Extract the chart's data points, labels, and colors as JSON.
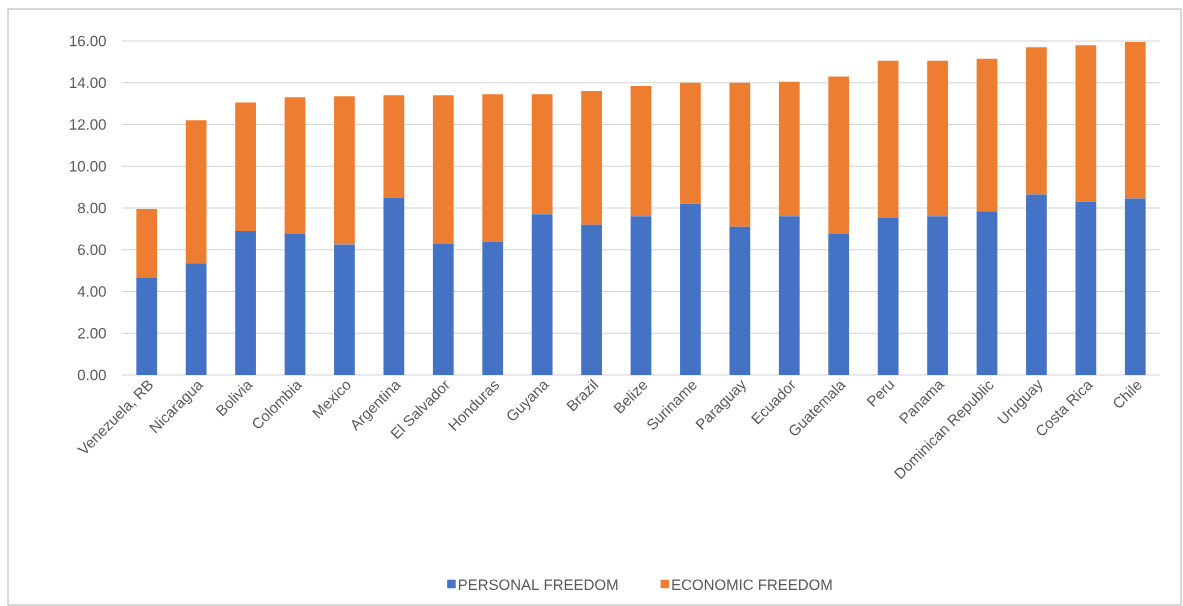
{
  "chart_data": {
    "type": "bar",
    "stacked": true,
    "categories": [
      "Venezuela, RB",
      "Nicaragua",
      "Bolivia",
      "Colombia",
      "Mexico",
      "Argentina",
      "El Salvador",
      "Honduras",
      "Guyana",
      "Brazil",
      "Belize",
      "Suriname",
      "Paraguay",
      "Ecuador",
      "Guatemala",
      "Peru",
      "Panama",
      "Dominican Republic",
      "Uruguay",
      "Costa Rica",
      "Chile"
    ],
    "series": [
      {
        "name": "PERSONAL FREEDOM",
        "color": "#4472c4",
        "values": [
          4.65,
          5.35,
          6.9,
          6.75,
          6.25,
          8.5,
          6.3,
          6.4,
          7.7,
          7.2,
          7.6,
          8.2,
          7.1,
          7.6,
          6.75,
          7.55,
          7.6,
          7.85,
          8.65,
          8.3,
          8.45
        ]
      },
      {
        "name": "ECONOMIC FREEDOM",
        "color": "#ed7d31",
        "values": [
          3.3,
          6.85,
          6.15,
          6.55,
          7.1,
          4.9,
          7.1,
          7.05,
          5.75,
          6.4,
          6.25,
          5.8,
          6.9,
          6.45,
          7.55,
          7.5,
          7.45,
          7.3,
          7.05,
          7.5,
          7.5
        ]
      }
    ],
    "ylim": [
      0,
      16
    ],
    "yticks": [
      {
        "value": 0,
        "label": "0.00"
      },
      {
        "value": 2,
        "label": "2.00"
      },
      {
        "value": 4,
        "label": "4.00"
      },
      {
        "value": 6,
        "label": "6.00"
      },
      {
        "value": 8,
        "label": "8.00"
      },
      {
        "value": 10,
        "label": "10.00"
      },
      {
        "value": 12,
        "label": "12.00"
      },
      {
        "value": 14,
        "label": "14.00"
      },
      {
        "value": 16,
        "label": "16.00"
      }
    ],
    "grid": "y",
    "legend": "bottom"
  }
}
